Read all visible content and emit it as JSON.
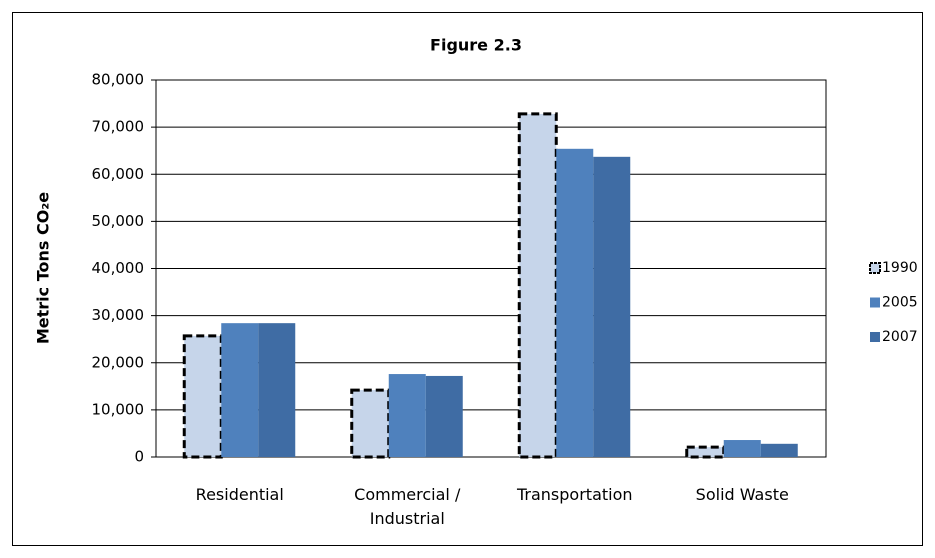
{
  "chart_data": {
    "type": "bar",
    "title": "Figure 2.3",
    "y_label": "Metric  Tons CO₂e",
    "categories": [
      "Residential",
      "Commercial / Industrial",
      "Transportation",
      "Solid Waste"
    ],
    "series": [
      {
        "name": "1990",
        "color": "#c6d5ea",
        "border": "dashed",
        "values": [
          25700,
          14200,
          72800,
          2100
        ]
      },
      {
        "name": "2005",
        "color": "#4f81bd",
        "values": [
          28400,
          17600,
          65400,
          3600
        ]
      },
      {
        "name": "2007",
        "color": "#3f6ca4",
        "values": [
          28400,
          17200,
          63700,
          2800
        ]
      }
    ],
    "ylim": [
      0,
      80000
    ],
    "yticks": [
      0,
      {
        "value": 10000,
        "label": "10,000"
      },
      {
        "value": 20000,
        "label": "20,000"
      },
      {
        "value": 30000,
        "label": "30,000"
      },
      {
        "value": 40000,
        "label": "40,000"
      },
      {
        "value": 50000,
        "label": "50,000"
      },
      {
        "value": 60000,
        "label": "60,000"
      },
      {
        "value": 70000,
        "label": "70,000"
      },
      {
        "value": 80000,
        "label": "80,000"
      }
    ],
    "grid": true,
    "legend": "right"
  }
}
